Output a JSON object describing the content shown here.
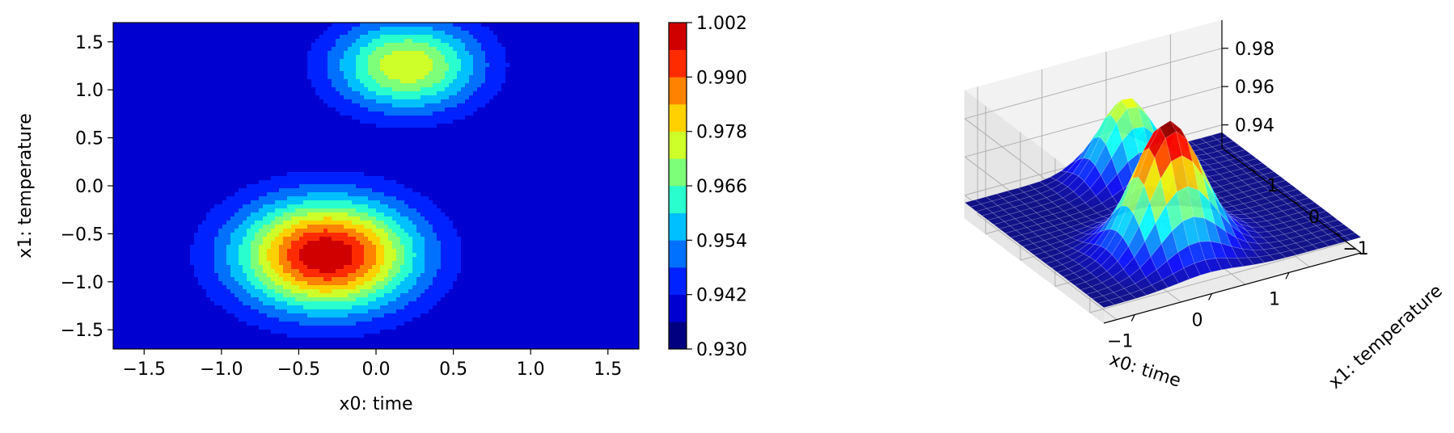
{
  "chart_data": [
    {
      "type": "contour",
      "xlabel": "x0: time",
      "ylabel": "x1: temperature",
      "xlim": [
        -1.7,
        1.7
      ],
      "ylim": [
        -1.7,
        1.7
      ],
      "xticks": [
        -1.5,
        -1.0,
        -0.5,
        0.0,
        0.5,
        1.0,
        1.5
      ],
      "xtick_labels": [
        "−1.5",
        "−1.0",
        "−0.5",
        "0.0",
        "0.5",
        "1.0",
        "1.5"
      ],
      "yticks": [
        -1.5,
        -1.0,
        -0.5,
        0.0,
        0.5,
        1.0,
        1.5
      ],
      "ytick_labels": [
        "−1.5",
        "−1.0",
        "−0.5",
        "0.0",
        "0.5",
        "1.0",
        "1.5"
      ],
      "colormap": "jet",
      "levels": [
        0.93,
        0.936,
        0.942,
        0.948,
        0.954,
        0.96,
        0.966,
        0.972,
        0.978,
        0.984,
        0.99,
        0.996,
        1.002
      ],
      "colorbar_ticks": [
        0.93,
        0.942,
        0.954,
        0.966,
        0.978,
        0.99,
        1.002
      ],
      "colorbar_tick_labels": [
        "0.930",
        "0.942",
        "0.954",
        "0.966",
        "0.978",
        "0.990",
        "1.002"
      ],
      "level_colors": [
        "#000080",
        "#0000d1",
        "#0022ff",
        "#0070ff",
        "#00c0ff",
        "#29ffce",
        "#7dff7a",
        "#ceff29",
        "#ffd100",
        "#ff8200",
        "#ff2b00",
        "#d10000",
        "#800000"
      ],
      "peaks": [
        {
          "x": -0.32,
          "y": -0.72,
          "value": 1.0
        },
        {
          "x": 0.2,
          "y": 1.25,
          "value": 0.975
        }
      ]
    },
    {
      "type": "surface",
      "xlabel": "x0: time",
      "ylabel": "x1: temperature",
      "xtick_labels": [
        "−1",
        "0",
        "1"
      ],
      "ytick_labels": [
        "−1",
        "0",
        "1"
      ],
      "ztick_labels": [
        "0.94",
        "0.96",
        "0.98"
      ],
      "colormap": "jet"
    }
  ]
}
